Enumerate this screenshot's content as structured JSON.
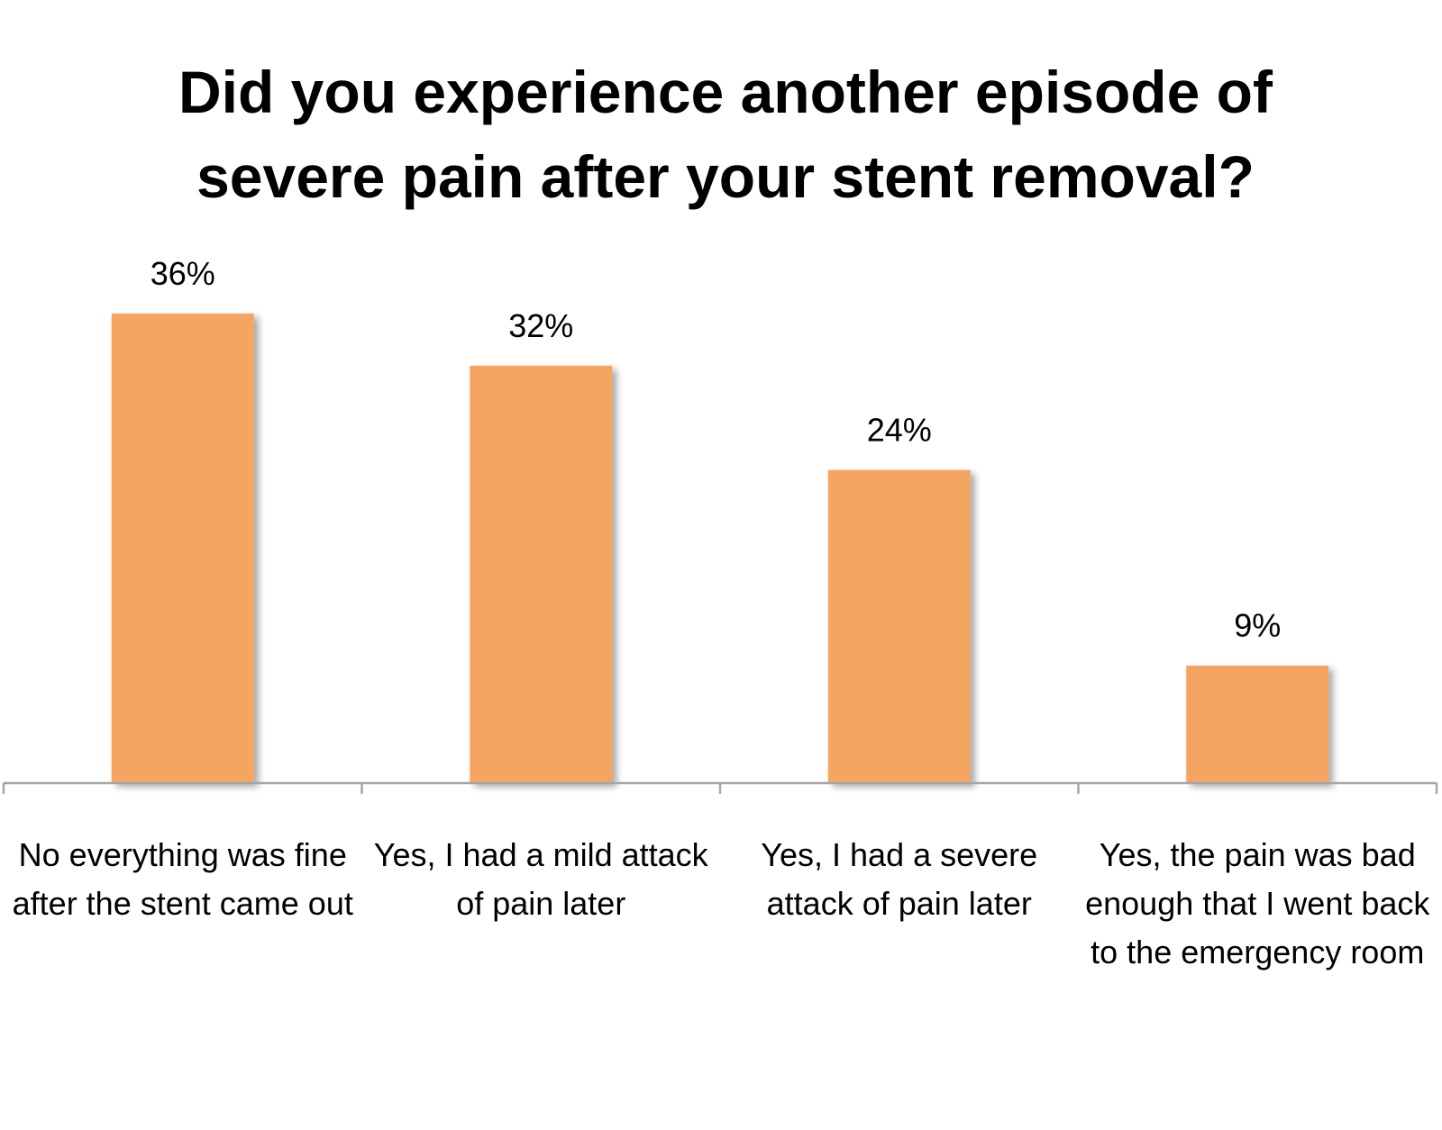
{
  "chart_data": {
    "type": "bar",
    "title": "Did you experience another episode of severe pain after your stent removal?",
    "categories": [
      "No everything was fine after the stent came out",
      "Yes, I had a mild attack of pain later",
      "Yes, I had a severe attack of pain later",
      "Yes, the pain was bad enough that I went back to the emergency room"
    ],
    "values": [
      36,
      32,
      24,
      9
    ],
    "value_labels": [
      "36%",
      "32%",
      "24%",
      "9%"
    ],
    "unit": "%",
    "ylim": [
      0,
      40
    ],
    "xlabel": "",
    "ylabel": "",
    "grid": false,
    "legend": "none",
    "bar_color": "#F5A562",
    "axis_color": "#A6A6A6"
  }
}
